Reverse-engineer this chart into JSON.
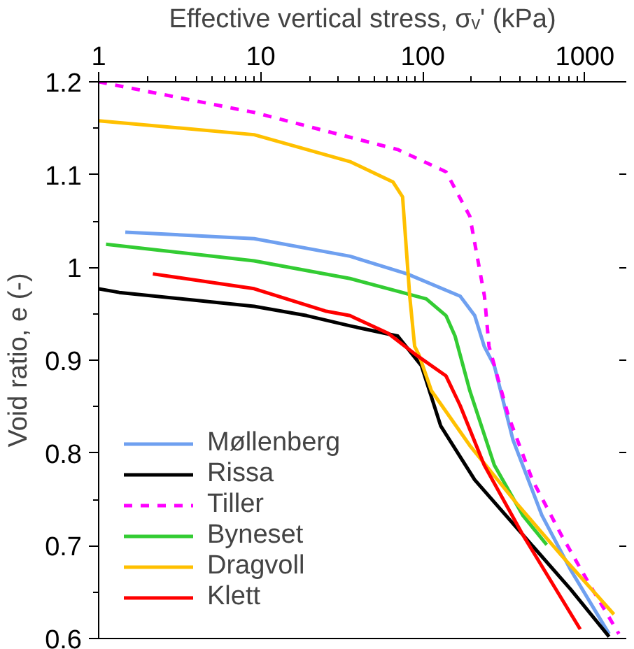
{
  "chart_data": {
    "type": "line",
    "xlabel": "Effective vertical stress, σᵥ' (kPa)",
    "ylabel": "Void ratio, e (-)",
    "log": "x",
    "xlim": [
      1,
      1800
    ],
    "xticks": [
      1,
      10,
      100,
      1000
    ],
    "ylim": [
      0.6,
      1.2
    ],
    "yticks": [
      0.6,
      0.7,
      0.8,
      0.9,
      1,
      1.1,
      1.2
    ],
    "grid": false,
    "legend": "bottom left",
    "marker": "none",
    "series": [
      {
        "name": "Møllenberg",
        "color": "#6fa0f0",
        "x": [
          1.46,
          9.1,
          35.5,
          80,
          170,
          209,
          239,
          276,
          360,
          542,
          816,
          1410
        ],
        "values": [
          1.038,
          1.031,
          1.012,
          0.993,
          0.969,
          0.948,
          0.915,
          0.894,
          0.814,
          0.733,
          0.674,
          0.605
        ]
      },
      {
        "name": "Rissa",
        "color": "#000000",
        "x": [
          1,
          1.34,
          9.1,
          19.2,
          35.5,
          70,
          98,
          129,
          209,
          413,
          816,
          1410
        ],
        "values": [
          0.977,
          0.973,
          0.958,
          0.948,
          0.937,
          0.926,
          0.894,
          0.829,
          0.771,
          0.712,
          0.653,
          0.602
        ]
      },
      {
        "name": "Tiller",
        "color": "#ff00ff",
        "line_style": "dashed",
        "x": [
          1,
          9.1,
          70,
          139,
          195,
          240,
          256,
          337,
          474,
          713,
          1070,
          1620
        ],
        "values": [
          1.2,
          1.167,
          1.127,
          1.103,
          1.055,
          0.969,
          0.915,
          0.84,
          0.771,
          0.712,
          0.658,
          0.605
        ]
      },
      {
        "name": "Byneset",
        "color": "#33cc33",
        "x": [
          1.11,
          9.1,
          35.5,
          105,
          139,
          158,
          195,
          276,
          413,
          581
        ],
        "values": [
          1.025,
          1.007,
          0.988,
          0.966,
          0.948,
          0.926,
          0.867,
          0.787,
          0.733,
          0.701
        ]
      },
      {
        "name": "Dragvoll",
        "color": "#ffc000",
        "x": [
          1,
          9.1,
          35.5,
          65.5,
          75,
          83,
          89,
          95,
          113,
          195,
          386,
          713,
          1510
        ],
        "values": [
          1.158,
          1.143,
          1.114,
          1.092,
          1.076,
          0.969,
          0.915,
          0.905,
          0.867,
          0.808,
          0.744,
          0.69,
          0.626
        ]
      },
      {
        "name": "Klett",
        "color": "#ff0000",
        "x": [
          2.16,
          9.1,
          25,
          35.5,
          61,
          92,
          139,
          170,
          239,
          413,
          935
        ],
        "values": [
          0.993,
          0.977,
          0.953,
          0.948,
          0.929,
          0.905,
          0.883,
          0.851,
          0.787,
          0.712,
          0.61
        ]
      }
    ]
  }
}
